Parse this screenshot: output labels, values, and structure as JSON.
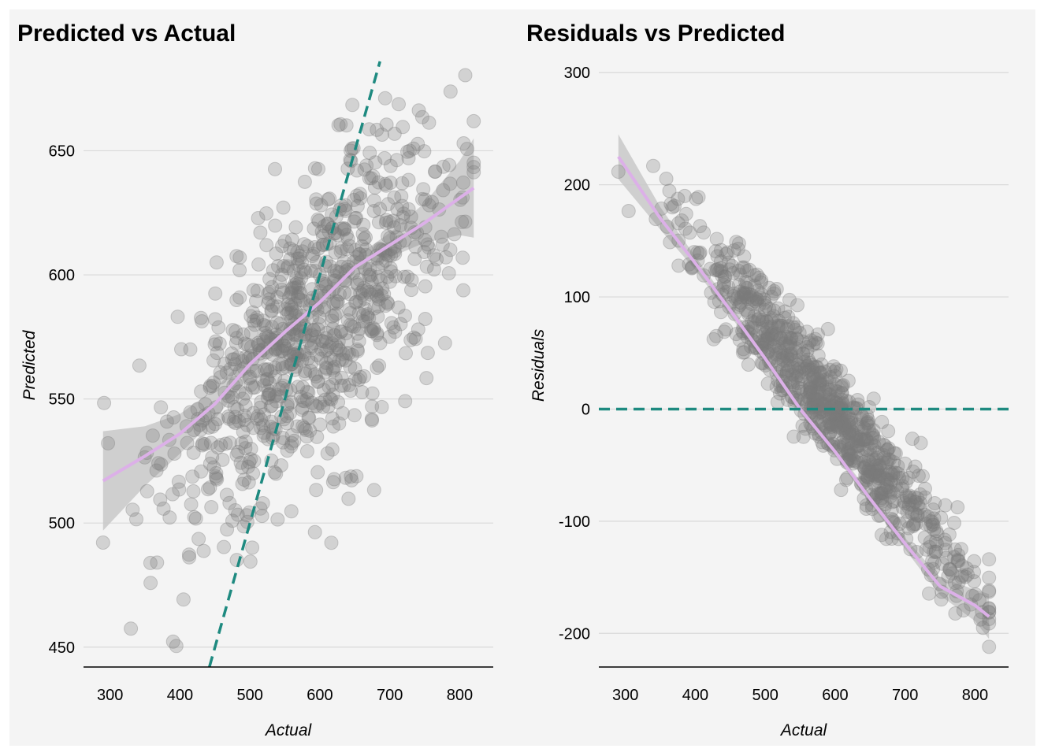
{
  "colors": {
    "panel_bg": "#f4f4f4",
    "gridline": "#d9d9d9",
    "points": "#7a7a7a",
    "smooth_line": "#dcb0e8",
    "confidence_band": "#c8c8c8",
    "reference_line": "#1e8a80"
  },
  "chart_data": [
    {
      "type": "scatter",
      "title": "Predicted vs Actual",
      "xlabel": "Actual",
      "ylabel": "Predicted",
      "xlim": [
        262,
        848
      ],
      "ylim": [
        442,
        686
      ],
      "xticks": [
        300,
        400,
        500,
        600,
        700,
        800
      ],
      "yticks": [
        450,
        500,
        550,
        600,
        650
      ],
      "grid": "horizontal",
      "reference_line": {
        "type": "identity",
        "style": "dashed"
      },
      "n_points": 900,
      "point_cloud": {
        "x_center": 590,
        "x_spread": 100,
        "slope": 0.25,
        "intercept": 432,
        "noise_sd": 28
      },
      "smooth": {
        "x": [
          290,
          350,
          400,
          450,
          500,
          550,
          600,
          650,
          700,
          750,
          800,
          820
        ],
        "y": [
          517,
          527,
          536,
          548,
          564,
          577,
          589,
          603,
          612,
          621,
          631,
          635
        ],
        "band": [
          20,
          12,
          8,
          6,
          5,
          4,
          4,
          4,
          5,
          8,
          15,
          20
        ]
      }
    },
    {
      "type": "scatter",
      "title": "Residuals vs Predicted",
      "xlabel": "Actual",
      "ylabel": "Residuals",
      "xlim": [
        262,
        848
      ],
      "ylim": [
        -230,
        310
      ],
      "xticks": [
        300,
        400,
        500,
        600,
        700,
        800
      ],
      "yticks": [
        -200,
        -100,
        0,
        100,
        200,
        300
      ],
      "tick_labels_y": [
        "-200",
        "-100",
        "0",
        "100",
        "200",
        "300"
      ],
      "grid": "horizontal",
      "reference_line": {
        "type": "horizontal",
        "y": 0,
        "style": "dashed"
      },
      "n_points": 900,
      "point_cloud": {
        "x_center": 590,
        "x_spread": 100,
        "slope": -0.77,
        "intercept": 455,
        "noise_sd": 22
      },
      "smooth": {
        "x": [
          290,
          350,
          400,
          450,
          500,
          550,
          600,
          650,
          700,
          750,
          800,
          820
        ],
        "y": [
          225,
          170,
          130,
          88,
          45,
          0,
          -38,
          -80,
          -120,
          -158,
          -175,
          -185
        ],
        "band": [
          20,
          10,
          6,
          5,
          4,
          4,
          4,
          4,
          5,
          8,
          14,
          20
        ]
      }
    }
  ]
}
